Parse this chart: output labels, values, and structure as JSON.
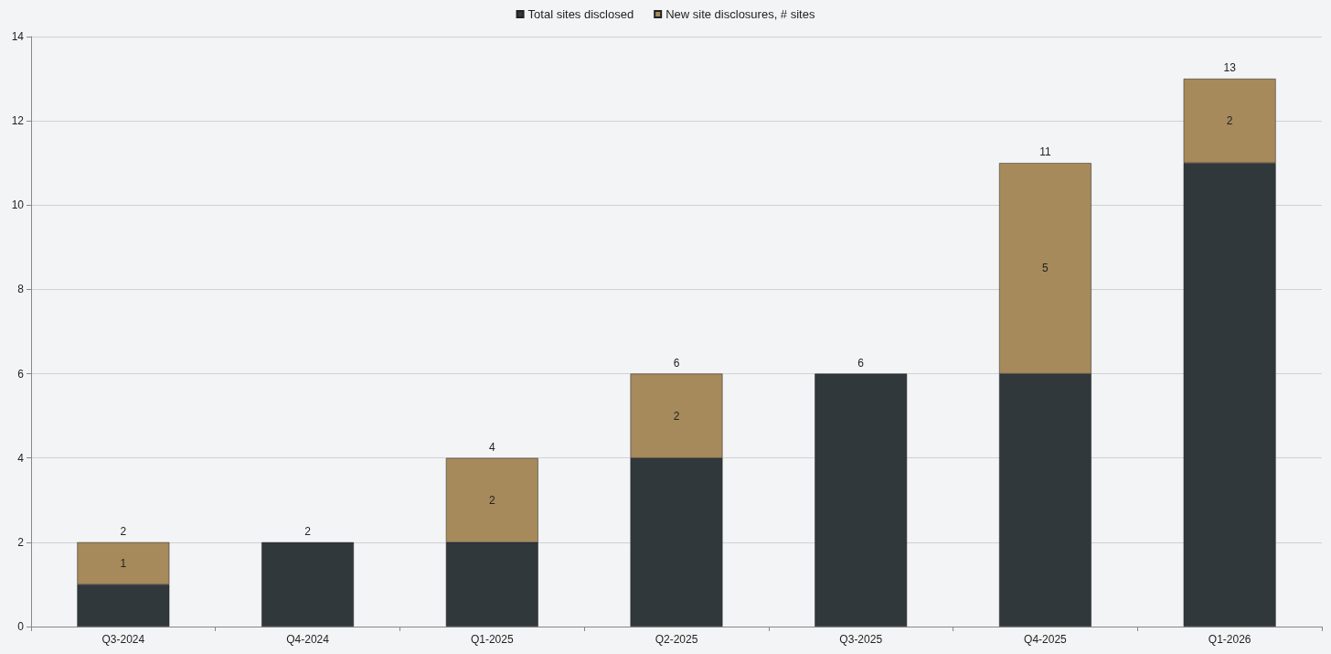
{
  "chart_data": {
    "type": "bar",
    "stacked": true,
    "categories": [
      "Q3-2024",
      "Q4-2024",
      "Q1-2025",
      "Q2-2025",
      "Q3-2025",
      "Q4-2025",
      "Q1-2026"
    ],
    "series": [
      {
        "name": "Total sites disclosed",
        "color": "#30383c",
        "values": [
          1,
          2,
          2,
          4,
          6,
          6,
          11
        ]
      },
      {
        "name": "New site disclosures, # sites",
        "color": "#a68a5b",
        "values": [
          1,
          null,
          2,
          2,
          null,
          5,
          2
        ],
        "value_labels": [
          "1",
          null,
          "2",
          "2",
          null,
          "5",
          "2"
        ]
      }
    ],
    "totals": [
      "2",
      "2",
      "4",
      "6",
      "6",
      "11",
      "13"
    ],
    "ylim": [
      0,
      14
    ],
    "yticks": [
      0,
      2,
      4,
      6,
      8,
      10,
      12,
      14
    ],
    "grid": "y",
    "legend": "top"
  }
}
